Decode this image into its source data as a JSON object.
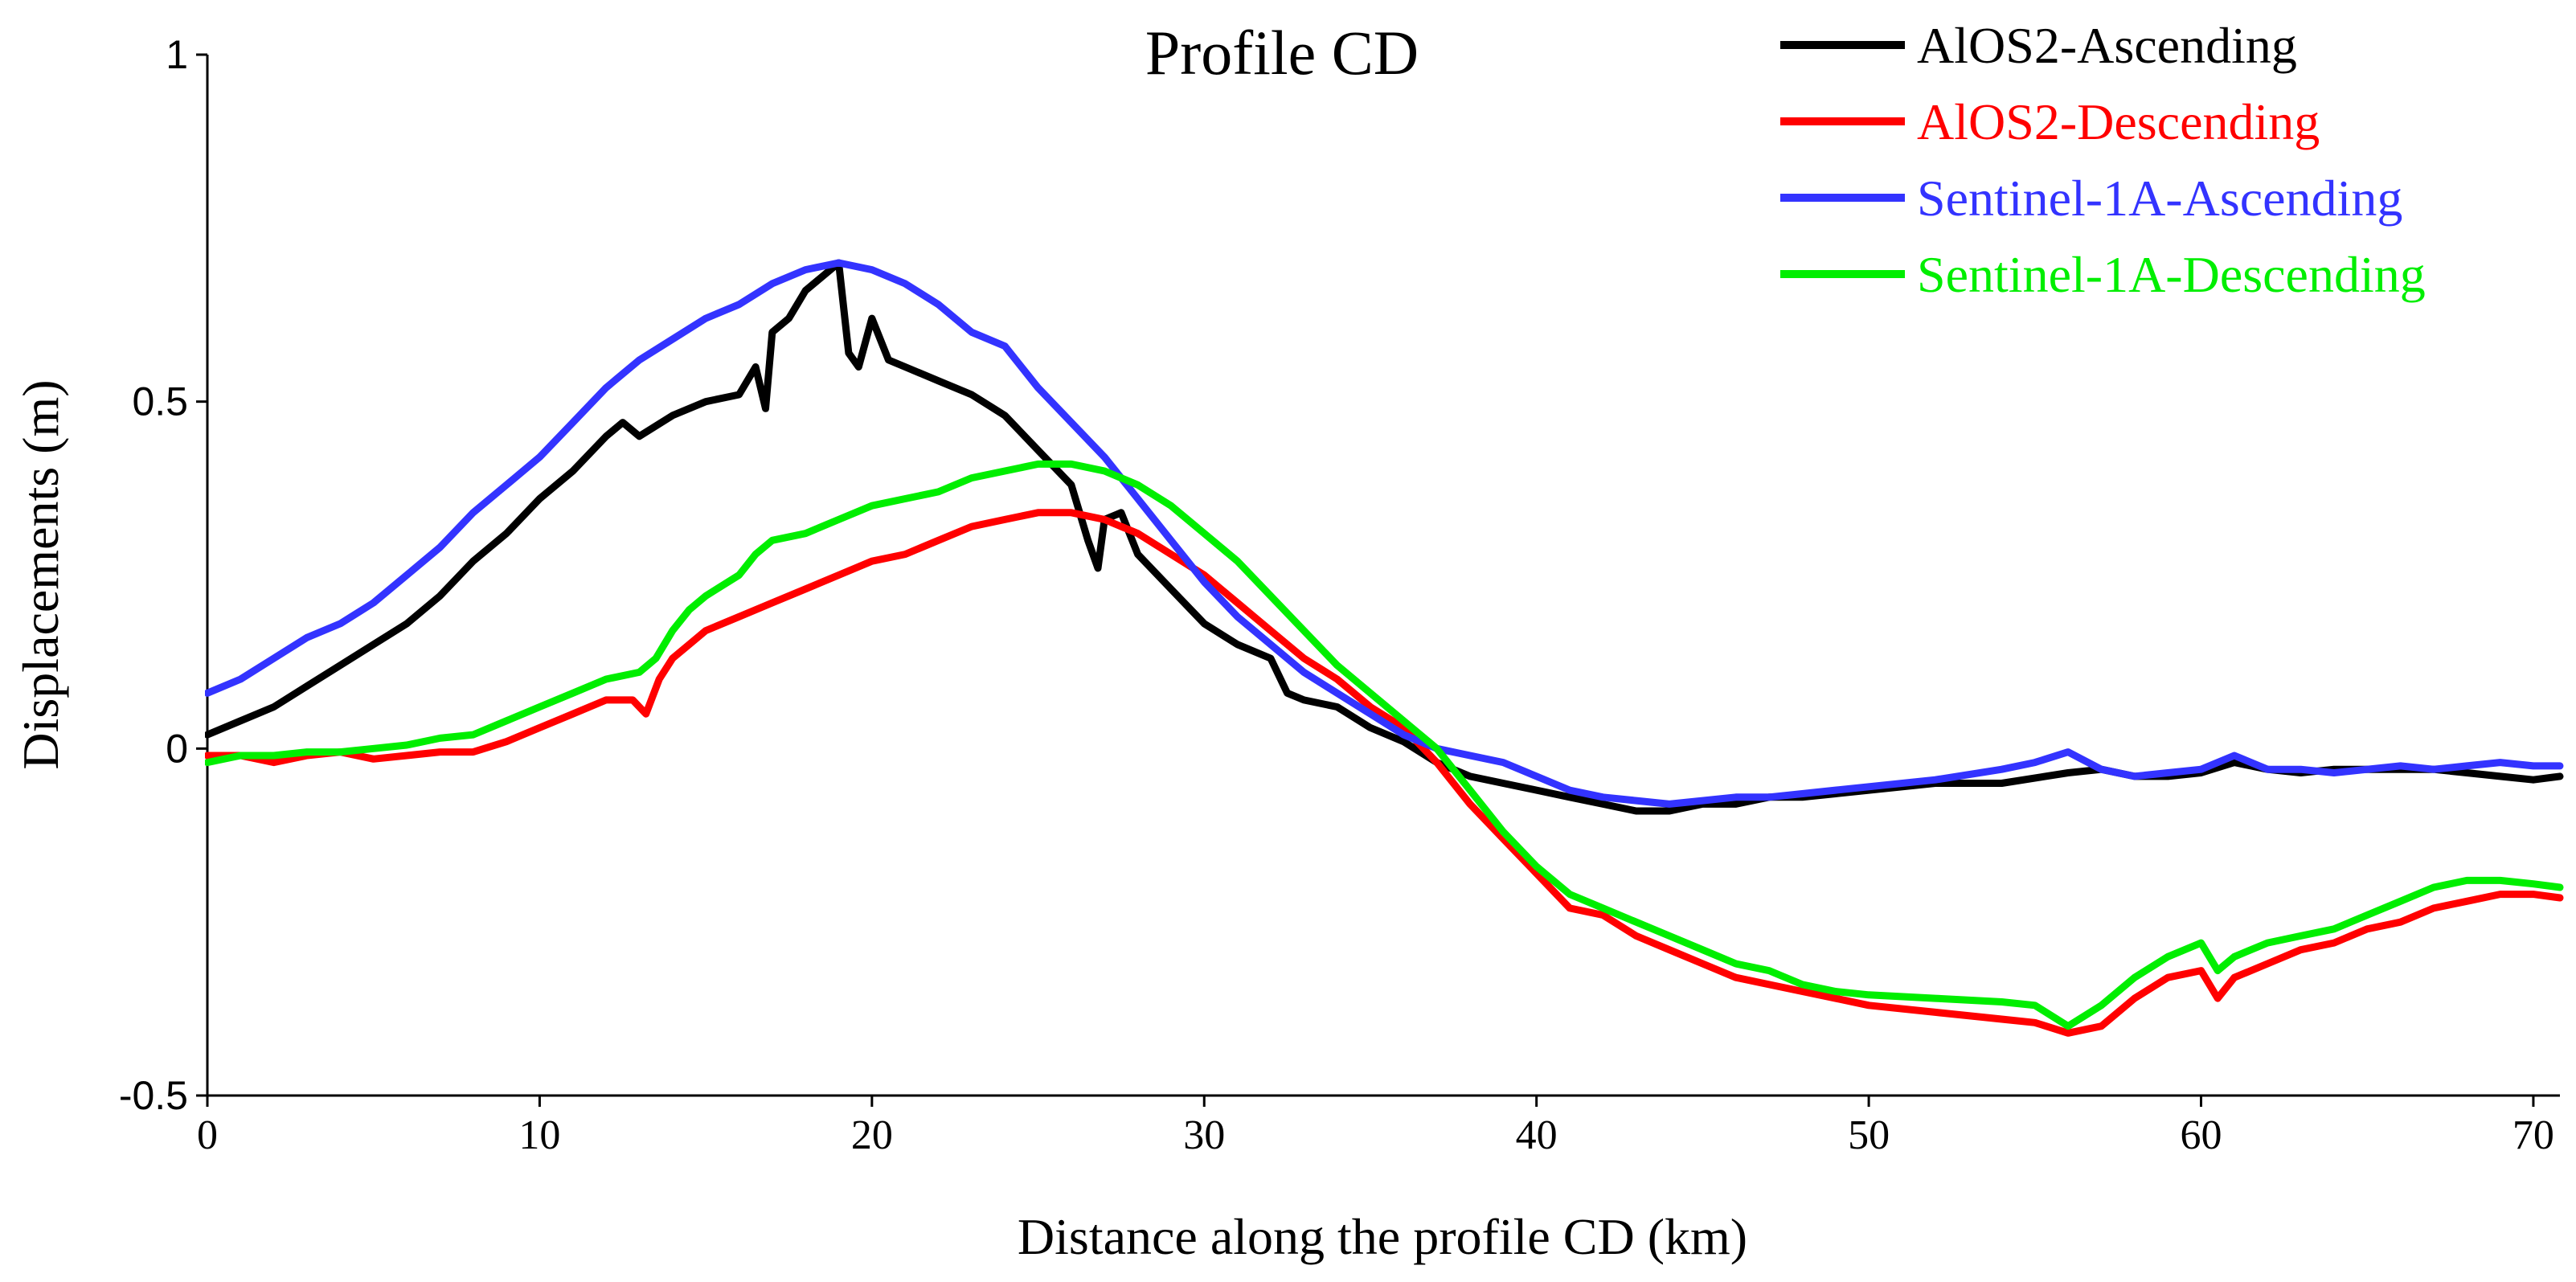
{
  "chart_data": {
    "type": "line",
    "title": "Profile CD",
    "xlabel": "Distance along the profile CD (km)",
    "ylabel": "Displacements (m)",
    "xlim": [
      0,
      70.8
    ],
    "ylim": [
      -0.5,
      1
    ],
    "xticks": [
      0,
      10,
      20,
      30,
      40,
      50,
      60,
      70
    ],
    "yticks": [
      {
        "value": 1,
        "label": "1"
      },
      {
        "value": 0.5,
        "label": "0.5"
      },
      {
        "value": 0,
        "label": "0"
      },
      {
        "value": -0.5,
        "label": "-0.5"
      }
    ],
    "legend_position": "top-right",
    "series": [
      {
        "name": "AlOS2-Ascending",
        "color": "#000000",
        "points": [
          [
            0,
            0.02
          ],
          [
            1,
            0.04
          ],
          [
            2,
            0.06
          ],
          [
            3,
            0.09
          ],
          [
            4,
            0.12
          ],
          [
            5,
            0.15
          ],
          [
            6,
            0.18
          ],
          [
            7,
            0.22
          ],
          [
            8,
            0.27
          ],
          [
            9,
            0.31
          ],
          [
            10,
            0.36
          ],
          [
            11,
            0.4
          ],
          [
            12,
            0.45
          ],
          [
            12.5,
            0.47
          ],
          [
            13,
            0.45
          ],
          [
            14,
            0.48
          ],
          [
            15,
            0.5
          ],
          [
            16,
            0.51
          ],
          [
            16.5,
            0.55
          ],
          [
            16.8,
            0.49
          ],
          [
            17,
            0.6
          ],
          [
            17.5,
            0.62
          ],
          [
            18,
            0.66
          ],
          [
            18.5,
            0.68
          ],
          [
            19,
            0.7
          ],
          [
            19.3,
            0.57
          ],
          [
            19.6,
            0.55
          ],
          [
            20,
            0.62
          ],
          [
            20.5,
            0.56
          ],
          [
            21,
            0.55
          ],
          [
            22,
            0.53
          ],
          [
            23,
            0.51
          ],
          [
            24,
            0.48
          ],
          [
            25,
            0.43
          ],
          [
            26,
            0.38
          ],
          [
            26.5,
            0.3
          ],
          [
            26.8,
            0.26
          ],
          [
            27,
            0.33
          ],
          [
            27.5,
            0.34
          ],
          [
            28,
            0.28
          ],
          [
            29,
            0.23
          ],
          [
            30,
            0.18
          ],
          [
            31,
            0.15
          ],
          [
            32,
            0.13
          ],
          [
            32.5,
            0.08
          ],
          [
            33,
            0.07
          ],
          [
            34,
            0.06
          ],
          [
            35,
            0.03
          ],
          [
            36,
            0.01
          ],
          [
            37,
            -0.02
          ],
          [
            38,
            -0.04
          ],
          [
            39,
            -0.05
          ],
          [
            40,
            -0.06
          ],
          [
            41,
            -0.07
          ],
          [
            42,
            -0.08
          ],
          [
            43,
            -0.09
          ],
          [
            44,
            -0.09
          ],
          [
            45,
            -0.08
          ],
          [
            46,
            -0.08
          ],
          [
            47,
            -0.07
          ],
          [
            48,
            -0.07
          ],
          [
            49,
            -0.065
          ],
          [
            50,
            -0.06
          ],
          [
            52,
            -0.05
          ],
          [
            54,
            -0.05
          ],
          [
            56,
            -0.035
          ],
          [
            57,
            -0.03
          ],
          [
            58,
            -0.04
          ],
          [
            59,
            -0.04
          ],
          [
            60,
            -0.035
          ],
          [
            61,
            -0.02
          ],
          [
            62,
            -0.03
          ],
          [
            63,
            -0.035
          ],
          [
            64,
            -0.03
          ],
          [
            65,
            -0.03
          ],
          [
            66,
            -0.03
          ],
          [
            67,
            -0.03
          ],
          [
            68,
            -0.035
          ],
          [
            69,
            -0.04
          ],
          [
            70,
            -0.045
          ],
          [
            70.8,
            -0.04
          ]
        ]
      },
      {
        "name": "AlOS2-Descending",
        "color": "#ff0000",
        "points": [
          [
            0,
            -0.01
          ],
          [
            1,
            -0.01
          ],
          [
            2,
            -0.02
          ],
          [
            3,
            -0.01
          ],
          [
            4,
            -0.005
          ],
          [
            5,
            -0.015
          ],
          [
            6,
            -0.01
          ],
          [
            7,
            -0.005
          ],
          [
            8,
            -0.005
          ],
          [
            9,
            0.01
          ],
          [
            10,
            0.03
          ],
          [
            11,
            0.05
          ],
          [
            12,
            0.07
          ],
          [
            12.8,
            0.07
          ],
          [
            13.2,
            0.05
          ],
          [
            13.6,
            0.1
          ],
          [
            14,
            0.13
          ],
          [
            14.5,
            0.15
          ],
          [
            15,
            0.17
          ],
          [
            16,
            0.19
          ],
          [
            17,
            0.21
          ],
          [
            18,
            0.23
          ],
          [
            19,
            0.25
          ],
          [
            20,
            0.27
          ],
          [
            21,
            0.28
          ],
          [
            22,
            0.3
          ],
          [
            23,
            0.32
          ],
          [
            24,
            0.33
          ],
          [
            25,
            0.34
          ],
          [
            26,
            0.34
          ],
          [
            27,
            0.33
          ],
          [
            28,
            0.31
          ],
          [
            29,
            0.28
          ],
          [
            30,
            0.25
          ],
          [
            31,
            0.21
          ],
          [
            32,
            0.17
          ],
          [
            33,
            0.13
          ],
          [
            34,
            0.1
          ],
          [
            35,
            0.06
          ],
          [
            36,
            0.03
          ],
          [
            37,
            -0.02
          ],
          [
            38,
            -0.08
          ],
          [
            39,
            -0.13
          ],
          [
            40,
            -0.18
          ],
          [
            41,
            -0.23
          ],
          [
            42,
            -0.24
          ],
          [
            43,
            -0.27
          ],
          [
            44,
            -0.29
          ],
          [
            45,
            -0.31
          ],
          [
            46,
            -0.33
          ],
          [
            47,
            -0.34
          ],
          [
            48,
            -0.35
          ],
          [
            49,
            -0.36
          ],
          [
            50,
            -0.37
          ],
          [
            52,
            -0.38
          ],
          [
            54,
            -0.39
          ],
          [
            55,
            -0.395
          ],
          [
            56,
            -0.41
          ],
          [
            57,
            -0.4
          ],
          [
            58,
            -0.36
          ],
          [
            59,
            -0.33
          ],
          [
            60,
            -0.32
          ],
          [
            60.5,
            -0.36
          ],
          [
            61,
            -0.33
          ],
          [
            62,
            -0.31
          ],
          [
            63,
            -0.29
          ],
          [
            64,
            -0.28
          ],
          [
            65,
            -0.26
          ],
          [
            66,
            -0.25
          ],
          [
            67,
            -0.23
          ],
          [
            68,
            -0.22
          ],
          [
            69,
            -0.21
          ],
          [
            70,
            -0.21
          ],
          [
            70.8,
            -0.215
          ]
        ]
      },
      {
        "name": "Sentinel-1A-Ascending",
        "color": "#3333ff",
        "points": [
          [
            0,
            0.08
          ],
          [
            1,
            0.1
          ],
          [
            2,
            0.13
          ],
          [
            3,
            0.16
          ],
          [
            4,
            0.18
          ],
          [
            5,
            0.21
          ],
          [
            6,
            0.25
          ],
          [
            7,
            0.29
          ],
          [
            8,
            0.34
          ],
          [
            9,
            0.38
          ],
          [
            10,
            0.42
          ],
          [
            11,
            0.47
          ],
          [
            12,
            0.52
          ],
          [
            13,
            0.56
          ],
          [
            14,
            0.59
          ],
          [
            15,
            0.62
          ],
          [
            16,
            0.64
          ],
          [
            17,
            0.67
          ],
          [
            18,
            0.69
          ],
          [
            19,
            0.7
          ],
          [
            20,
            0.69
          ],
          [
            21,
            0.67
          ],
          [
            22,
            0.64
          ],
          [
            23,
            0.6
          ],
          [
            24,
            0.58
          ],
          [
            25,
            0.52
          ],
          [
            26,
            0.47
          ],
          [
            27,
            0.42
          ],
          [
            28,
            0.36
          ],
          [
            29,
            0.3
          ],
          [
            30,
            0.24
          ],
          [
            31,
            0.19
          ],
          [
            32,
            0.15
          ],
          [
            33,
            0.11
          ],
          [
            34,
            0.08
          ],
          [
            35,
            0.05
          ],
          [
            36,
            0.02
          ],
          [
            37,
            0.0
          ],
          [
            38,
            -0.01
          ],
          [
            39,
            -0.02
          ],
          [
            40,
            -0.04
          ],
          [
            41,
            -0.06
          ],
          [
            42,
            -0.07
          ],
          [
            43,
            -0.075
          ],
          [
            44,
            -0.08
          ],
          [
            45,
            -0.075
          ],
          [
            46,
            -0.07
          ],
          [
            47,
            -0.07
          ],
          [
            48,
            -0.065
          ],
          [
            49,
            -0.06
          ],
          [
            50,
            -0.055
          ],
          [
            52,
            -0.045
          ],
          [
            54,
            -0.03
          ],
          [
            55,
            -0.02
          ],
          [
            56,
            -0.005
          ],
          [
            57,
            -0.03
          ],
          [
            58,
            -0.04
          ],
          [
            59,
            -0.035
          ],
          [
            60,
            -0.03
          ],
          [
            61,
            -0.01
          ],
          [
            62,
            -0.03
          ],
          [
            63,
            -0.03
          ],
          [
            64,
            -0.035
          ],
          [
            65,
            -0.03
          ],
          [
            66,
            -0.025
          ],
          [
            67,
            -0.03
          ],
          [
            68,
            -0.025
          ],
          [
            69,
            -0.02
          ],
          [
            70,
            -0.025
          ],
          [
            70.8,
            -0.025
          ]
        ]
      },
      {
        "name": "Sentinel-1A-Descending",
        "color": "#00ee00",
        "points": [
          [
            0,
            -0.02
          ],
          [
            1,
            -0.01
          ],
          [
            2,
            -0.01
          ],
          [
            3,
            -0.005
          ],
          [
            4,
            -0.005
          ],
          [
            5,
            0.0
          ],
          [
            6,
            0.005
          ],
          [
            7,
            0.015
          ],
          [
            8,
            0.02
          ],
          [
            9,
            0.04
          ],
          [
            10,
            0.06
          ],
          [
            11,
            0.08
          ],
          [
            12,
            0.1
          ],
          [
            13,
            0.11
          ],
          [
            13.5,
            0.13
          ],
          [
            14,
            0.17
          ],
          [
            14.5,
            0.2
          ],
          [
            15,
            0.22
          ],
          [
            16,
            0.25
          ],
          [
            16.5,
            0.28
          ],
          [
            17,
            0.3
          ],
          [
            18,
            0.31
          ],
          [
            19,
            0.33
          ],
          [
            20,
            0.35
          ],
          [
            21,
            0.36
          ],
          [
            22,
            0.37
          ],
          [
            23,
            0.39
          ],
          [
            24,
            0.4
          ],
          [
            25,
            0.41
          ],
          [
            26,
            0.41
          ],
          [
            27,
            0.4
          ],
          [
            28,
            0.38
          ],
          [
            29,
            0.35
          ],
          [
            30,
            0.31
          ],
          [
            31,
            0.27
          ],
          [
            32,
            0.22
          ],
          [
            33,
            0.17
          ],
          [
            34,
            0.12
          ],
          [
            35,
            0.08
          ],
          [
            36,
            0.04
          ],
          [
            37,
            0.0
          ],
          [
            38,
            -0.06
          ],
          [
            39,
            -0.12
          ],
          [
            40,
            -0.17
          ],
          [
            41,
            -0.21
          ],
          [
            42,
            -0.23
          ],
          [
            43,
            -0.25
          ],
          [
            44,
            -0.27
          ],
          [
            45,
            -0.29
          ],
          [
            46,
            -0.31
          ],
          [
            47,
            -0.32
          ],
          [
            48,
            -0.34
          ],
          [
            49,
            -0.35
          ],
          [
            50,
            -0.355
          ],
          [
            52,
            -0.36
          ],
          [
            54,
            -0.365
          ],
          [
            55,
            -0.37
          ],
          [
            56,
            -0.4
          ],
          [
            57,
            -0.37
          ],
          [
            58,
            -0.33
          ],
          [
            59,
            -0.3
          ],
          [
            60,
            -0.28
          ],
          [
            60.5,
            -0.32
          ],
          [
            61,
            -0.3
          ],
          [
            62,
            -0.28
          ],
          [
            63,
            -0.27
          ],
          [
            64,
            -0.26
          ],
          [
            65,
            -0.24
          ],
          [
            66,
            -0.22
          ],
          [
            67,
            -0.2
          ],
          [
            68,
            -0.19
          ],
          [
            69,
            -0.19
          ],
          [
            70,
            -0.195
          ],
          [
            70.8,
            -0.2
          ]
        ]
      }
    ]
  }
}
